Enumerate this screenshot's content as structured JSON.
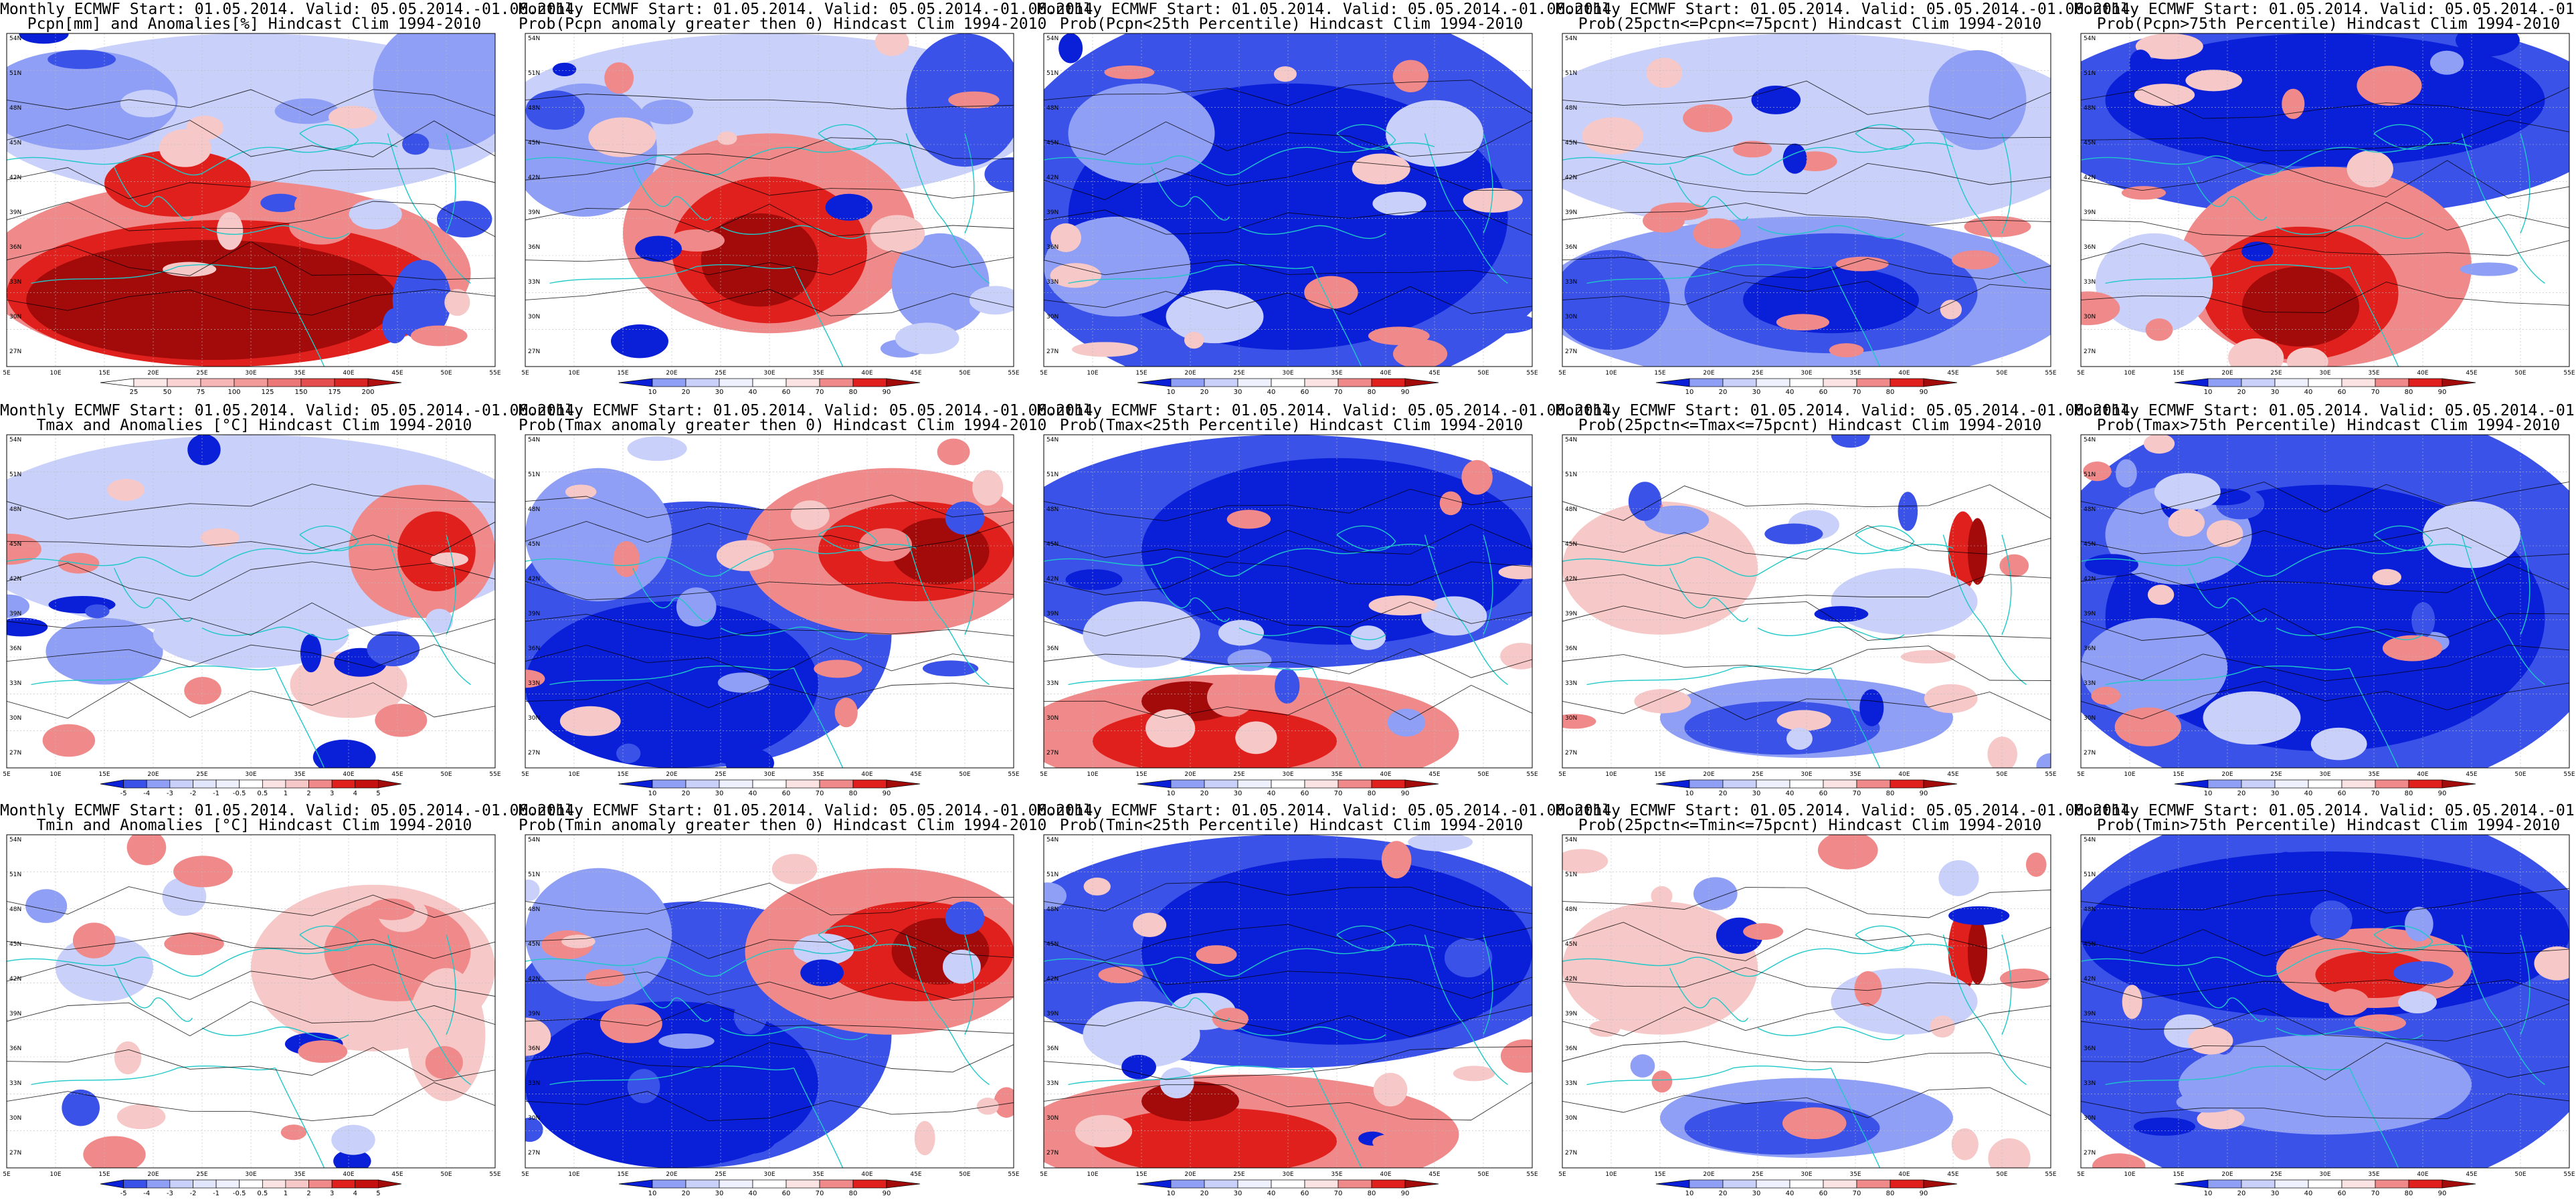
{
  "figure": {
    "lat_ticks": [
      "54N",
      "51N",
      "48N",
      "45N",
      "42N",
      "39N",
      "36N",
      "33N",
      "30N",
      "27N"
    ],
    "lon_ticks": [
      "5E",
      "10E",
      "15E",
      "20E",
      "25E",
      "30E",
      "35E",
      "40E",
      "45E",
      "50E",
      "55E"
    ],
    "line1": "Monthly ECMWF Start: 01.05.2014. Valid: 05.05.2014.-01.06.2014.",
    "colors": {
      "deep_blue": "#0a1fd8",
      "blue": "#3a52e8",
      "light_blue": "#8f9ff5",
      "pale_blue": "#c9d0fa",
      "white": "#ffffff",
      "pale_red": "#f6c8c8",
      "light_red": "#f08a8a",
      "red": "#e0201c",
      "dark_red": "#a30a0a",
      "coast": "#1fc8c8",
      "contour": "#000000"
    }
  },
  "rows": [
    {
      "variable": "precipitation",
      "panels": [
        {
          "id": "pcpn-anom",
          "title2": "Pcpn[mm] and Anomalies[%] Hindcast Clim 1994-2010",
          "colorbar": [
            "25",
            "50",
            "75",
            "100",
            "125",
            "150",
            "175",
            "200"
          ],
          "pattern": "anom-pcpn"
        },
        {
          "id": "pcpn-prob-pos",
          "title2": "Prob(Pcpn anomaly greater then 0) Hindcast Clim 1994-2010",
          "colorbar": [
            "10",
            "20",
            "30",
            "40",
            "60",
            "70",
            "80",
            "90"
          ],
          "pattern": "prob-warm-south"
        },
        {
          "id": "pcpn-prob-lt25",
          "title2": "Prob(Pcpn<25th Percentile) Hindcast Clim 1994-2010",
          "colorbar": [
            "10",
            "20",
            "30",
            "40",
            "60",
            "70",
            "80",
            "90"
          ],
          "pattern": "mostly-blue"
        },
        {
          "id": "pcpn-prob-mid",
          "title2": "Prob(25pctn<=Pcpn<=75pcnt) Hindcast Clim 1994-2010",
          "colorbar": [
            "10",
            "20",
            "30",
            "40",
            "60",
            "70",
            "80",
            "90"
          ],
          "pattern": "mixed-blue-south"
        },
        {
          "id": "pcpn-prob-gt75",
          "title2": "Prob(Pcpn>75th Percentile) Hindcast Clim 1994-2010",
          "colorbar": [
            "10",
            "20",
            "30",
            "40",
            "60",
            "70",
            "80",
            "90"
          ],
          "pattern": "red-south-blue-north"
        }
      ]
    },
    {
      "variable": "tmax",
      "panels": [
        {
          "id": "tmax-anom",
          "title2": "Tmax and Anomalies [°C] Hindcast Clim 1994-2010",
          "colorbar": [
            "-5",
            "-4",
            "-3",
            "-2",
            "-1",
            "-0.5",
            "0.5",
            "1",
            "2",
            "3",
            "4",
            "5"
          ],
          "pattern": "anom-temp"
        },
        {
          "id": "tmax-prob-pos",
          "title2": "Prob(Tmax anomaly greater then 0) Hindcast Clim 1994-2010",
          "colorbar": [
            "10",
            "20",
            "30",
            "40",
            "60",
            "70",
            "80",
            "90"
          ],
          "pattern": "blue-west-red-east"
        },
        {
          "id": "tmax-prob-lt25",
          "title2": "Prob(Tmax<25th Percentile) Hindcast Clim 1994-2010",
          "colorbar": [
            "10",
            "20",
            "30",
            "40",
            "60",
            "70",
            "80",
            "90"
          ],
          "pattern": "blue-north-red-south"
        },
        {
          "id": "tmax-prob-mid",
          "title2": "Prob(25pctn<=Tmax<=75pcnt) Hindcast Clim 1994-2010",
          "colorbar": [
            "10",
            "20",
            "30",
            "40",
            "60",
            "70",
            "80",
            "90"
          ],
          "pattern": "pale-mixed"
        },
        {
          "id": "tmax-prob-gt75",
          "title2": "Prob(Tmax>75th Percentile) Hindcast Clim 1994-2010",
          "colorbar": [
            "10",
            "20",
            "30",
            "40",
            "60",
            "70",
            "80",
            "90"
          ],
          "pattern": "mostly-blue"
        }
      ]
    },
    {
      "variable": "tmin",
      "panels": [
        {
          "id": "tmin-anom",
          "title2": "Tmin and Anomalies [°C] Hindcast Clim 1994-2010",
          "colorbar": [
            "-5",
            "-4",
            "-3",
            "-2",
            "-1",
            "-0.5",
            "0.5",
            "1",
            "2",
            "3",
            "4",
            "5"
          ],
          "pattern": "anom-temp-east"
        },
        {
          "id": "tmin-prob-pos",
          "title2": "Prob(Tmin anomaly greater then 0) Hindcast Clim 1994-2010",
          "colorbar": [
            "10",
            "20",
            "30",
            "40",
            "60",
            "70",
            "80",
            "90"
          ],
          "pattern": "blue-west-red-east"
        },
        {
          "id": "tmin-prob-lt25",
          "title2": "Prob(Tmin<25th Percentile) Hindcast Clim 1994-2010",
          "colorbar": [
            "10",
            "20",
            "30",
            "40",
            "60",
            "70",
            "80",
            "90"
          ],
          "pattern": "blue-north-red-south"
        },
        {
          "id": "tmin-prob-mid",
          "title2": "Prob(25pctn<=Tmin<=75pcnt) Hindcast Clim 1994-2010",
          "colorbar": [
            "10",
            "20",
            "30",
            "40",
            "60",
            "70",
            "80",
            "90"
          ],
          "pattern": "pale-mixed"
        },
        {
          "id": "tmin-prob-gt75",
          "title2": "Prob(Tmin>75th Percentile) Hindcast Clim 1994-2010",
          "colorbar": [
            "10",
            "20",
            "30",
            "40",
            "60",
            "70",
            "80",
            "90"
          ],
          "pattern": "blue-with-red-center"
        }
      ]
    }
  ]
}
